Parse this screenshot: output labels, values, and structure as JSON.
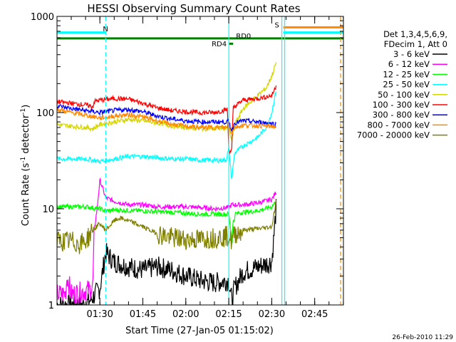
{
  "colors": {
    "3-6": "#000000",
    "6-12": "#ff00ff",
    "12-25": "#00ff00",
    "25-50": "#00ffff",
    "50-100": "#d4d400",
    "100-300": "#ff0000",
    "300-800": "#0000ff",
    "800-7000": "#ff8800",
    "7000-20000": "#808000",
    "bar_N": "#00ffff",
    "bar_RD": "#008000",
    "bar_S": "#ff8800",
    "vline": "#00ffff",
    "vline_end": "#ff8800"
  },
  "chart_data": {
    "type": "line",
    "title": "HESSI Observing Summary Count Rates",
    "xlabel": "Start Time (27-Jan-05 01:15:02)",
    "ylabel_parts": [
      "Count Rate (s",
      "-1",
      " detector",
      "-1",
      ")"
    ],
    "yscale": "log",
    "ylim": [
      1,
      1000
    ],
    "xlim": [
      0,
      100
    ],
    "x_units": "minutes since 01:15:02",
    "x_ticks": [
      {
        "x": 14.97,
        "label": "01:30"
      },
      {
        "x": 29.97,
        "label": "01:45"
      },
      {
        "x": 44.97,
        "label": "02:00"
      },
      {
        "x": 59.97,
        "label": "02:15"
      },
      {
        "x": 74.97,
        "label": "02:30"
      },
      {
        "x": 89.97,
        "label": "02:45"
      }
    ],
    "y_ticks": [
      {
        "y": 1,
        "label": "1"
      },
      {
        "y": 10,
        "label": "10"
      },
      {
        "y": 100,
        "label": "100"
      },
      {
        "y": 1000,
        "label": "1000"
      }
    ],
    "legend_header": [
      "Det 1,3,4,5,6,9,",
      "FDecim 1, Att 0"
    ],
    "legend_placement": "right",
    "series": [
      {
        "name": "3 - 6 keV",
        "color_key": "3-6",
        "x": [
          0,
          10,
          12.5,
          15,
          17,
          20,
          25,
          30,
          35,
          40,
          45,
          50,
          55,
          60,
          61,
          62,
          65,
          70,
          75,
          76.5
        ],
        "y": [
          1,
          1,
          1.2,
          1.5,
          3.5,
          2.8,
          2.5,
          2.3,
          2.5,
          2.3,
          2.0,
          1.8,
          1.7,
          1.8,
          1.1,
          1.5,
          2.2,
          2.5,
          2.8,
          10
        ]
      },
      {
        "name": "6 - 12 keV",
        "color_key": "6-12",
        "x": [
          0,
          3,
          3.5,
          5,
          10,
          12.5,
          13,
          14,
          15,
          17,
          20,
          25,
          30,
          35,
          40,
          45,
          50,
          55,
          60,
          61,
          62,
          65,
          70,
          75,
          76.5
        ],
        "y": [
          1.3,
          1.3,
          2.0,
          1.3,
          1.4,
          1.5,
          6,
          10,
          20,
          13,
          12,
          11,
          11,
          10.5,
          10.5,
          10.5,
          10.3,
          10,
          10.3,
          11,
          11,
          11,
          11.5,
          12.5,
          15
        ]
      },
      {
        "name": "12 - 25 keV",
        "color_key": "12-25",
        "x": [
          0,
          5,
          10,
          15,
          17,
          20,
          25,
          30,
          35,
          40,
          45,
          50,
          55,
          60,
          61,
          62,
          65,
          70,
          75,
          76.5
        ],
        "y": [
          10.5,
          10.5,
          10.5,
          10,
          9.5,
          9.7,
          9.6,
          9.5,
          9.3,
          9.2,
          9.0,
          8.8,
          8.8,
          8.8,
          5,
          8.8,
          9.2,
          9.5,
          10.5,
          12
        ]
      },
      {
        "name": "25 - 50 keV",
        "color_key": "25-50",
        "x": [
          0,
          5,
          10,
          15,
          20,
          25,
          30,
          35,
          40,
          45,
          50,
          55,
          59,
          60,
          61,
          62,
          65,
          70,
          73,
          75,
          76.5
        ],
        "y": [
          33,
          33,
          33,
          31,
          33,
          35,
          35,
          34,
          33,
          33,
          32,
          32,
          32,
          42,
          20,
          38,
          45,
          55,
          70,
          100,
          170
        ]
      },
      {
        "name": "50 - 100 keV",
        "color_key": "50-100",
        "x": [
          0,
          5,
          10,
          12.5,
          15,
          20,
          25,
          30,
          35,
          40,
          45,
          50,
          55,
          60,
          61,
          62,
          65,
          70,
          73,
          75,
          76.5
        ],
        "y": [
          75,
          72,
          70,
          68,
          75,
          80,
          85,
          82,
          78,
          73,
          70,
          68,
          68,
          70,
          50,
          75,
          110,
          150,
          180,
          240,
          330
        ]
      },
      {
        "name": "100 - 300 keV",
        "color_key": "100-300",
        "x": [
          0,
          5,
          10,
          12.5,
          13,
          15,
          20,
          25,
          30,
          35,
          40,
          45,
          50,
          55,
          59.5,
          60,
          61,
          61.5,
          62,
          65,
          70,
          75,
          76.5
        ],
        "y": [
          130,
          125,
          120,
          115,
          130,
          135,
          140,
          138,
          125,
          112,
          105,
          102,
          100,
          100,
          108,
          40,
          40,
          112,
          115,
          135,
          140,
          150,
          190
        ]
      },
      {
        "name": "300 - 800 keV",
        "color_key": "300-800",
        "x": [
          0,
          5,
          10,
          15,
          20,
          25,
          30,
          35,
          40,
          45,
          50,
          55,
          60,
          61,
          62,
          65,
          70,
          75,
          76.5
        ],
        "y": [
          118,
          110,
          105,
          100,
          105,
          108,
          102,
          92,
          86,
          82,
          80,
          80,
          80,
          65,
          78,
          82,
          80,
          77,
          75
        ]
      },
      {
        "name": "800 - 7000 keV",
        "color_key": "800-7000",
        "x": [
          0,
          5,
          10,
          15,
          20,
          25,
          30,
          35,
          40,
          45,
          50,
          55,
          60,
          61,
          62,
          65,
          70,
          75,
          76.5
        ],
        "y": [
          108,
          100,
          94,
          88,
          92,
          95,
          90,
          82,
          76,
          72,
          70,
          70,
          70,
          62,
          70,
          74,
          73,
          72,
          71
        ]
      },
      {
        "name": "7000 - 20000 keV",
        "color_key": "7000-20000",
        "x": [
          0,
          5,
          8,
          10,
          12.5,
          15,
          17,
          20,
          22,
          25,
          30,
          35,
          40,
          45,
          50,
          55,
          60,
          61,
          62,
          65,
          70,
          75,
          76.5
        ],
        "y": [
          4.6,
          4.6,
          4.3,
          4.6,
          6,
          7,
          6,
          7.5,
          8,
          7.5,
          6.5,
          5.5,
          5,
          4.8,
          4.8,
          5,
          5.2,
          4.5,
          5.5,
          6,
          6.2,
          6.5,
          12
        ]
      }
    ],
    "annotations": [
      {
        "label": "N",
        "x": 16,
        "y": 700,
        "color_key": "bar_N"
      },
      {
        "label": "RD0",
        "x": 62.5,
        "y": 590,
        "color_key": "bar_RD"
      },
      {
        "label": "RD4",
        "x": 54,
        "y": 490,
        "color_key": "bar_RD"
      },
      {
        "label": "S",
        "x": 76,
        "y": 770,
        "color_key": "bar_S"
      }
    ],
    "bars": [
      {
        "key": "N",
        "x0": 0,
        "x1": 17,
        "y": 680,
        "color_key": "bar_N"
      },
      {
        "key": "N2",
        "x0": 79,
        "x1": 100,
        "y": 680,
        "color_key": "bar_N"
      },
      {
        "key": "S",
        "x0": 79,
        "x1": 100,
        "y": 770,
        "color_key": "bar_S"
      },
      {
        "key": "RD",
        "x0": 0,
        "x1": 100,
        "y": 590,
        "color_key": "bar_RD"
      },
      {
        "key": "RD4",
        "x0": 60,
        "x1": 61.5,
        "y": 520,
        "color_key": "bar_RD"
      }
    ],
    "vlines": [
      {
        "x": 17,
        "style": "dashed",
        "color_key": "vline"
      },
      {
        "x": 60,
        "style": "solid",
        "color_key": "vline"
      },
      {
        "x": 78.5,
        "style": "solid",
        "color_key": "vline"
      },
      {
        "x": 79.5,
        "style": "solid",
        "color_key": "vline"
      },
      {
        "x": 99,
        "style": "dashed",
        "color_key": "vline_end"
      }
    ]
  },
  "footer": {
    "date": "26-Feb-2010 11:29"
  }
}
